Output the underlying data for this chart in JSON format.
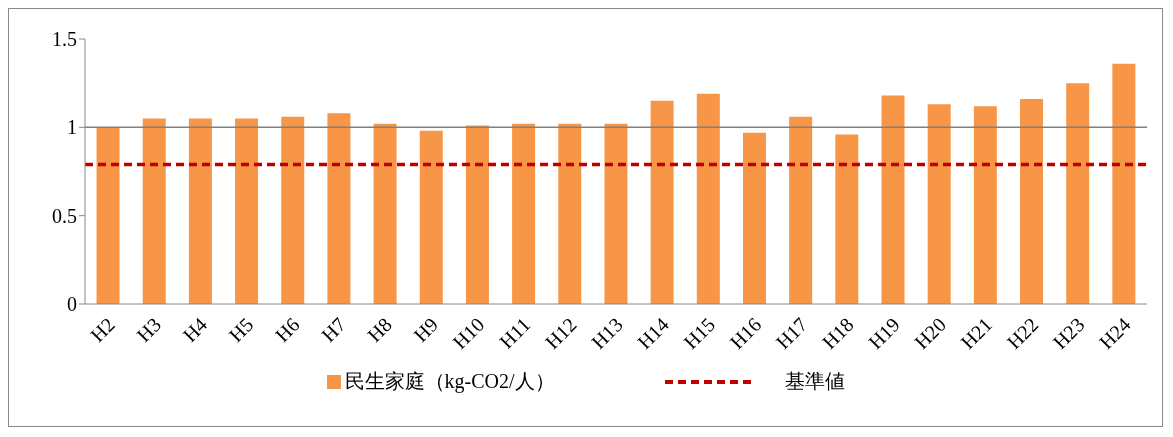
{
  "chart_data": {
    "type": "bar",
    "categories": [
      "H2",
      "H3",
      "H4",
      "H5",
      "H6",
      "H7",
      "H8",
      "H9",
      "H10",
      "H11",
      "H12",
      "H13",
      "H14",
      "H15",
      "H16",
      "H17",
      "H18",
      "H19",
      "H20",
      "H21",
      "H22",
      "H23",
      "H24"
    ],
    "series": [
      {
        "name": "民生家庭（kg-CO2/人）",
        "color": "#f79646",
        "values": [
          1.0,
          1.05,
          1.05,
          1.05,
          1.06,
          1.08,
          1.02,
          0.98,
          1.01,
          1.02,
          1.02,
          1.02,
          1.15,
          1.19,
          0.97,
          1.06,
          0.96,
          1.18,
          1.13,
          1.12,
          1.16,
          1.25,
          1.36
        ]
      }
    ],
    "ylim": [
      0,
      1.5
    ],
    "yticks": [
      0,
      0.5,
      1,
      1.5
    ],
    "ref_lines": [
      {
        "axis": "y",
        "value": 0.79,
        "label": "基準値",
        "color": "#c00000",
        "line_style": "dashed"
      },
      {
        "axis": "y",
        "value": 1,
        "label": null,
        "color": "#808080",
        "line_style": "solid"
      }
    ],
    "grid": false,
    "legend": "bottom"
  }
}
